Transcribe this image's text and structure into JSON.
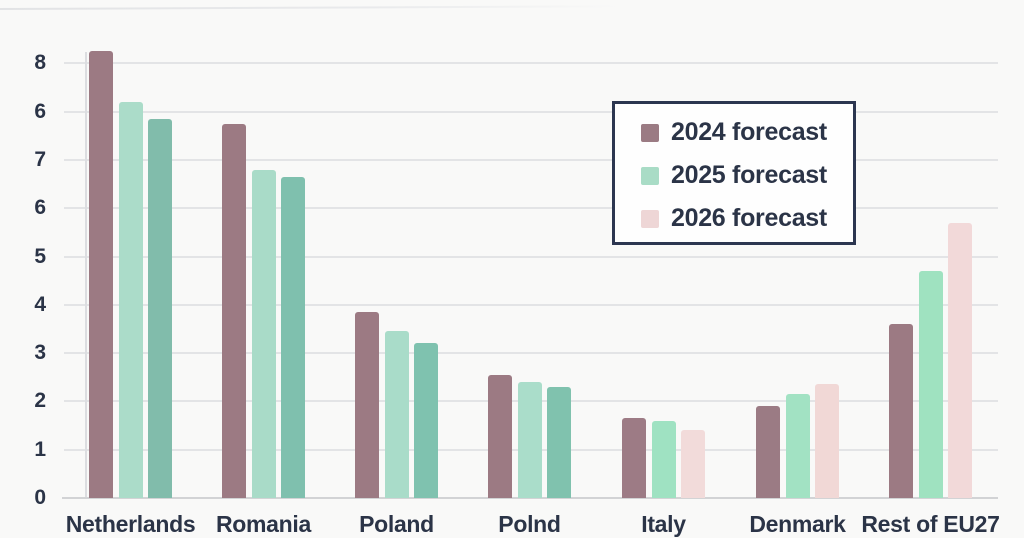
{
  "chart": {
    "background": "#f9f9f8",
    "text_color": "#2b3447",
    "grid_color": "#e3e4e6",
    "axis_color": "#d2d3d5"
  },
  "legend": {
    "items": [
      {
        "label": "2024 forecast",
        "color": "#9b7b83"
      },
      {
        "label": "2025 forecast",
        "color": "#a9dcc6"
      },
      {
        "label": "2026 forecast",
        "color": "#eed6d6"
      }
    ]
  },
  "y_axis": {
    "ticks_bottom_to_top": [
      "0",
      "1",
      "2",
      "3",
      "4",
      "5",
      "6",
      "7",
      "6",
      "8"
    ]
  },
  "chart_data": {
    "type": "bar",
    "title": "",
    "xlabel": "",
    "ylabel": "",
    "categories": [
      "Netherlands",
      "Romania",
      "Poland",
      "Polnd",
      "Italy",
      "Denmark",
      "Rest of EU27"
    ],
    "series": [
      {
        "name": "2024 forecast",
        "values": [
          9.25,
          7.75,
          3.85,
          2.55,
          1.65,
          1.9,
          3.6
        ],
        "colors": [
          "#9c7a83",
          "#9c7a83",
          "#9c7a83",
          "#9c7a83",
          "#9d7b85",
          "#9b7b84",
          "#9c7a83"
        ]
      },
      {
        "name": "2025 forecast",
        "values": [
          8.2,
          6.8,
          3.45,
          2.4,
          1.6,
          2.15,
          4.7
        ],
        "colors": [
          "#abdcc9",
          "#a9dbc8",
          "#a9dcc9",
          "#aaddca",
          "#9fe2c2",
          "#a2e2c3",
          "#9fe2c0"
        ]
      },
      {
        "name": "2026 forecast",
        "values": [
          7.85,
          6.65,
          3.2,
          2.3,
          1.4,
          2.35,
          5.7
        ],
        "colors": [
          "#81bcab",
          "#7fc0ae",
          "#7fc2af",
          "#80c2ae",
          "#f2dbda",
          "#f1d8d6",
          "#f2d9d9"
        ]
      }
    ],
    "ylim": [
      0,
      9.5
    ],
    "grid": true,
    "legend_position": "upper-center"
  }
}
